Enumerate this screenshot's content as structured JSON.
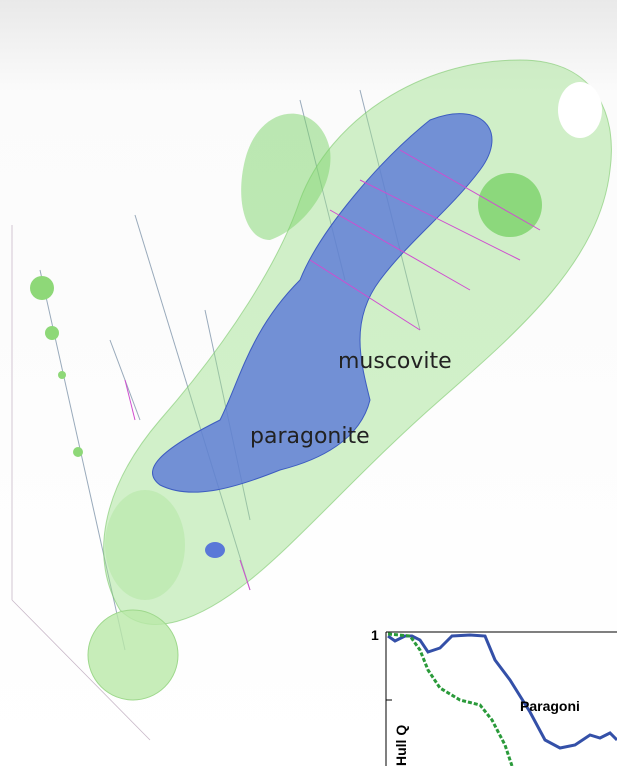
{
  "labels": {
    "muscovite": "muscovite",
    "paragonite": "paragonite"
  },
  "inset": {
    "ytick": "1",
    "series_label": "Paragoni",
    "ylabel": "Hull Q"
  }
}
